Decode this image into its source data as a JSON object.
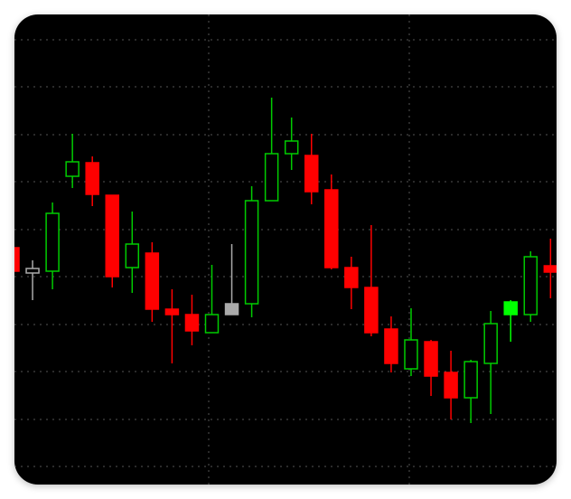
{
  "chart_data": {
    "type": "candlestick",
    "title": "",
    "xlabel": "",
    "ylabel": "",
    "ylim": [
      0,
      520
    ],
    "grid": true,
    "background": "#000000",
    "grid_color": "#555555",
    "colors": {
      "bullish_outline": "#00cc00",
      "bearish_fill": "#ff0000",
      "wick_bull": "#00cc00",
      "wick_bear": "#ff0000",
      "neutral": "#aaaaaa",
      "highlight_bull_fill": "#00ff00"
    },
    "candles": [
      {
        "open": 262,
        "high": 274,
        "low": 234,
        "close": 236,
        "dir": "down"
      },
      {
        "open": 234,
        "high": 248,
        "low": 204,
        "close": 239,
        "dir": "neutral"
      },
      {
        "open": 236,
        "high": 312,
        "low": 216,
        "close": 300,
        "dir": "up"
      },
      {
        "open": 341,
        "high": 388,
        "low": 328,
        "close": 357,
        "dir": "up"
      },
      {
        "open": 356,
        "high": 363,
        "low": 308,
        "close": 321,
        "dir": "down"
      },
      {
        "open": 320,
        "high": 320,
        "low": 218,
        "close": 230,
        "dir": "down"
      },
      {
        "open": 240,
        "high": 302,
        "low": 212,
        "close": 266,
        "dir": "up"
      },
      {
        "open": 256,
        "high": 268,
        "low": 180,
        "close": 194,
        "dir": "down"
      },
      {
        "open": 194,
        "high": 216,
        "low": 134,
        "close": 188,
        "dir": "down"
      },
      {
        "open": 188,
        "high": 210,
        "low": 154,
        "close": 170,
        "dir": "down"
      },
      {
        "open": 168,
        "high": 243,
        "low": 168,
        "close": 188,
        "dir": "up"
      },
      {
        "open": 188,
        "high": 266,
        "low": 188,
        "close": 200,
        "dir": "neutral"
      },
      {
        "open": 200,
        "high": 330,
        "low": 185,
        "close": 314,
        "dir": "up"
      },
      {
        "open": 314,
        "high": 428,
        "low": 314,
        "close": 366,
        "dir": "up"
      },
      {
        "open": 366,
        "high": 406,
        "low": 348,
        "close": 380,
        "dir": "up"
      },
      {
        "open": 364,
        "high": 388,
        "low": 310,
        "close": 324,
        "dir": "down"
      },
      {
        "open": 326,
        "high": 343,
        "low": 238,
        "close": 240,
        "dir": "down"
      },
      {
        "open": 240,
        "high": 252,
        "low": 194,
        "close": 218,
        "dir": "down"
      },
      {
        "open": 218,
        "high": 287,
        "low": 164,
        "close": 168,
        "dir": "down"
      },
      {
        "open": 172,
        "high": 186,
        "low": 124,
        "close": 134,
        "dir": "down"
      },
      {
        "open": 128,
        "high": 195,
        "low": 120,
        "close": 160,
        "dir": "up"
      },
      {
        "open": 158,
        "high": 160,
        "low": 98,
        "close": 120,
        "dir": "down"
      },
      {
        "open": 124,
        "high": 148,
        "low": 72,
        "close": 96,
        "dir": "down"
      },
      {
        "open": 96,
        "high": 138,
        "low": 68,
        "close": 136,
        "dir": "up"
      },
      {
        "open": 134,
        "high": 192,
        "low": 78,
        "close": 178,
        "dir": "up"
      },
      {
        "open": 188,
        "high": 204,
        "low": 158,
        "close": 202,
        "dir": "up_filled"
      },
      {
        "open": 188,
        "high": 258,
        "low": 180,
        "close": 252,
        "dir": "up"
      },
      {
        "open": 242,
        "high": 272,
        "low": 206,
        "close": 235,
        "dir": "down"
      }
    ]
  }
}
